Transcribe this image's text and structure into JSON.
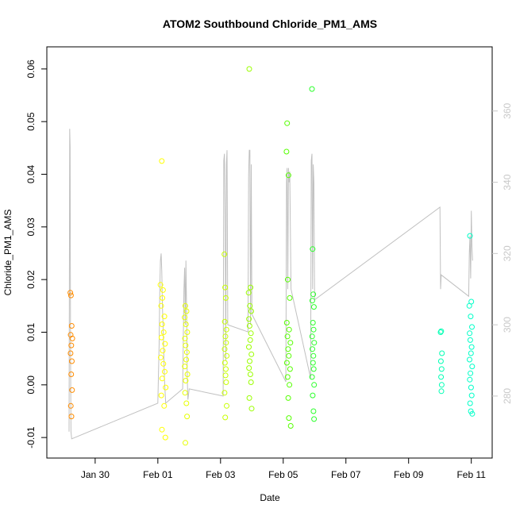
{
  "chart_data": {
    "type": "scatter",
    "title": "ATOM2 Southbound Chloride_PM1_AMS",
    "xlabel": "Date",
    "ylabel": "Chloride_PM1_AMS",
    "xlim": [
      "2017-01-28T11:00",
      "2017-02-11T16:00"
    ],
    "ylim": [
      -0.0139,
      0.0642
    ],
    "x_ticks": [
      "Jan 30",
      "Feb 01",
      "Feb 03",
      "Feb 05",
      "Feb 07",
      "Feb 09",
      "Feb 11"
    ],
    "y_ticks": [
      -0.01,
      0.0,
      0.01,
      0.02,
      0.03,
      0.04,
      0.05,
      0.06
    ],
    "y_tick_labels": [
      "-0.01",
      "0.00",
      "0.01",
      "0.02",
      "0.03",
      "0.04",
      "0.05",
      "0.06"
    ],
    "right_axis": {
      "label": "",
      "ylim": [
        262.6,
        378
      ],
      "ticks": [
        280,
        300,
        320,
        340,
        360
      ],
      "tick_labels": [
        "280",
        "300",
        "320",
        "340",
        "360"
      ],
      "color": "#c8c8c8"
    },
    "grid": false,
    "legend": "none",
    "marker": "open-circle",
    "series": [
      {
        "color": "#ff8c00",
        "x": [
          "2017-01-29T05:00",
          "2017-01-29T05:30",
          "2017-01-29T06:00",
          "2017-01-29T05:15",
          "2017-01-29T06:30",
          "2017-01-29T05:45",
          "2017-01-29T05:10",
          "2017-01-29T06:10",
          "2017-01-29T05:40",
          "2017-01-29T06:20",
          "2017-01-29T05:20",
          "2017-01-29T05:50"
        ],
        "y": [
          0.0175,
          0.017,
          0.0112,
          0.0095,
          0.0088,
          0.0075,
          0.006,
          0.0045,
          0.002,
          -0.001,
          -0.004,
          -0.006
        ]
      },
      {
        "color": "#ffff00",
        "x": [
          "2017-02-01T03:00",
          "2017-02-01T02:00",
          "2017-02-01T04:00",
          "2017-02-01T03:30",
          "2017-02-01T02:30",
          "2017-02-01T05:00",
          "2017-02-01T03:15",
          "2017-02-01T04:30",
          "2017-02-01T02:45",
          "2017-02-01T05:30",
          "2017-02-01T03:45",
          "2017-02-01T02:15",
          "2017-02-01T04:15",
          "2017-02-01T05:15",
          "2017-02-01T03:20",
          "2017-02-01T06:00",
          "2017-02-01T02:40",
          "2017-02-01T04:50",
          "2017-02-01T03:10",
          "2017-02-01T05:45"
        ],
        "y": [
          0.0425,
          0.019,
          0.018,
          0.0165,
          0.015,
          0.013,
          0.0115,
          0.01,
          0.009,
          0.0078,
          0.0065,
          0.0052,
          0.004,
          0.0025,
          0.0012,
          -0.0005,
          -0.002,
          -0.004,
          -0.0085,
          -0.01
        ]
      },
      {
        "color": "#e6ff00",
        "x": [
          "2017-02-01T21:00",
          "2017-02-01T22:00",
          "2017-02-01T20:30",
          "2017-02-01T21:30",
          "2017-02-01T22:30",
          "2017-02-01T20:45",
          "2017-02-01T21:15",
          "2017-02-01T22:15",
          "2017-02-01T21:45",
          "2017-02-01T20:40",
          "2017-02-01T22:40",
          "2017-02-01T21:20",
          "2017-02-01T20:50",
          "2017-02-01T21:50",
          "2017-02-01T22:20",
          "2017-02-01T21:05"
        ],
        "y": [
          0.015,
          0.014,
          0.0128,
          0.0115,
          0.01,
          0.0088,
          0.0075,
          0.0062,
          0.0048,
          0.0035,
          0.002,
          0.0008,
          -0.0015,
          -0.0035,
          -0.006,
          -0.011
        ]
      },
      {
        "color": "#c8ff00",
        "x": [
          "2017-02-03T03:00",
          "2017-02-03T03:30",
          "2017-02-03T04:00",
          "2017-02-03T03:15",
          "2017-02-03T04:30",
          "2017-02-03T03:45",
          "2017-02-03T04:15",
          "2017-02-03T03:10",
          "2017-02-03T04:45",
          "2017-02-03T03:20",
          "2017-02-03T04:05",
          "2017-02-03T03:50",
          "2017-02-03T04:20",
          "2017-02-03T03:05",
          "2017-02-03T04:40",
          "2017-02-03T03:35"
        ],
        "y": [
          0.0248,
          0.0185,
          0.0165,
          0.012,
          0.0105,
          0.0092,
          0.008,
          0.0068,
          0.0055,
          0.0042,
          0.003,
          0.0018,
          0.0005,
          -0.0015,
          -0.004,
          -0.0062
        ]
      },
      {
        "color": "#9bff00",
        "x": [
          "2017-02-03T22:00",
          "2017-02-03T23:00",
          "2017-02-03T21:30",
          "2017-02-03T22:30",
          "2017-02-03T23:30",
          "2017-02-03T21:45",
          "2017-02-03T22:15",
          "2017-02-03T23:15",
          "2017-02-03T22:45",
          "2017-02-03T21:40",
          "2017-02-03T23:40",
          "2017-02-03T22:20",
          "2017-02-03T21:50",
          "2017-02-03T22:50",
          "2017-02-03T23:20",
          "2017-02-03T22:05",
          "2017-02-03T23:50"
        ],
        "y": [
          0.06,
          0.0185,
          0.0175,
          0.015,
          0.014,
          0.0125,
          0.0112,
          0.0098,
          0.0085,
          0.0072,
          0.0058,
          0.0045,
          0.0032,
          0.002,
          0.0005,
          -0.0025,
          -0.0045
        ]
      },
      {
        "color": "#55ff00",
        "x": [
          "2017-02-05T03:00",
          "2017-02-05T02:30",
          "2017-02-05T04:00",
          "2017-02-05T03:30",
          "2017-02-05T05:00",
          "2017-02-05T02:45",
          "2017-02-05T04:30",
          "2017-02-05T03:15",
          "2017-02-05T05:30",
          "2017-02-05T03:45",
          "2017-02-05T04:15",
          "2017-02-05T02:50",
          "2017-02-05T05:15",
          "2017-02-05T03:20",
          "2017-02-05T04:45",
          "2017-02-05T03:50",
          "2017-02-05T04:20",
          "2017-02-05T05:45"
        ],
        "y": [
          0.0497,
          0.0443,
          0.0398,
          0.02,
          0.0165,
          0.0118,
          0.0105,
          0.0092,
          0.008,
          0.0068,
          0.0055,
          0.0042,
          0.003,
          0.0015,
          0.0,
          -0.0025,
          -0.0063,
          -0.0078
        ]
      },
      {
        "color": "#2bff2b",
        "x": [
          "2017-02-05T22:00",
          "2017-02-05T22:30",
          "2017-02-05T23:00",
          "2017-02-05T22:15",
          "2017-02-05T23:30",
          "2017-02-05T22:45",
          "2017-02-05T23:15",
          "2017-02-05T22:10",
          "2017-02-05T23:45",
          "2017-02-05T22:20",
          "2017-02-05T23:05",
          "2017-02-05T22:50",
          "2017-02-05T23:20",
          "2017-02-05T22:05",
          "2017-02-05T23:40",
          "2017-02-05T22:35",
          "2017-02-05T23:10",
          "2017-02-05T23:35"
        ],
        "y": [
          0.0562,
          0.0258,
          0.0172,
          0.016,
          0.0148,
          0.0118,
          0.0105,
          0.0092,
          0.008,
          0.0068,
          0.0055,
          0.0042,
          0.003,
          0.0015,
          0.0,
          -0.002,
          -0.005,
          -0.0065
        ]
      },
      {
        "color": "#00ffb4",
        "x": [
          "2017-02-10T01:00",
          "2017-02-10T00:30",
          "2017-02-10T01:30",
          "2017-02-10T00:45",
          "2017-02-10T01:15",
          "2017-02-10T00:50",
          "2017-02-10T01:20",
          "2017-02-10T01:05"
        ],
        "y": [
          0.0102,
          0.01,
          0.006,
          0.0045,
          0.003,
          0.0015,
          0.0,
          -0.0012
        ]
      },
      {
        "color": "#00ffc8",
        "x": [
          "2017-02-10T23:00",
          "2017-02-11T00:00",
          "2017-02-10T22:30",
          "2017-02-10T23:30",
          "2017-02-11T00:30",
          "2017-02-10T22:45",
          "2017-02-10T23:15",
          "2017-02-11T00:15",
          "2017-02-10T23:45",
          "2017-02-10T22:40",
          "2017-02-11T00:40",
          "2017-02-10T23:20",
          "2017-02-10T22:50",
          "2017-02-10T23:50",
          "2017-02-11T00:20",
          "2017-02-10T23:05",
          "2017-02-10T23:40",
          "2017-02-11T00:45"
        ],
        "y": [
          0.0283,
          0.0158,
          0.015,
          0.013,
          0.011,
          0.0098,
          0.0085,
          0.0072,
          0.006,
          0.0048,
          0.0035,
          0.0022,
          0.001,
          -0.0005,
          -0.002,
          -0.0035,
          -0.005,
          -0.0055
        ]
      }
    ],
    "altitude_line": {
      "color": "#c0c0c0",
      "x": [
        "2017-01-29T04:00",
        "2017-01-29T04:30",
        "2017-01-29T04:50",
        "2017-01-29T05:10",
        "2017-01-29T05:30",
        "2017-01-29T06:00",
        "2017-02-01T00:00",
        "2017-02-01T01:00",
        "2017-02-01T01:30",
        "2017-02-01T02:00",
        "2017-02-01T02:30",
        "2017-02-01T03:00",
        "2017-02-01T03:30",
        "2017-02-01T04:00",
        "2017-02-01T05:00",
        "2017-02-01T06:00",
        "2017-02-01T19:00",
        "2017-02-01T20:00",
        "2017-02-01T20:30",
        "2017-02-01T21:00",
        "2017-02-01T21:30",
        "2017-02-01T22:00",
        "2017-02-01T22:30",
        "2017-02-01T23:00",
        "2017-02-02T00:00",
        "2017-02-03T02:00",
        "2017-02-03T02:30",
        "2017-02-03T03:00",
        "2017-02-03T03:30",
        "2017-02-03T04:00",
        "2017-02-03T04:30",
        "2017-02-03T05:00",
        "2017-02-03T05:30",
        "2017-02-03T21:00",
        "2017-02-03T21:30",
        "2017-02-03T22:00",
        "2017-02-03T22:30",
        "2017-02-03T23:00",
        "2017-02-03T23:30",
        "2017-02-04T00:00",
        "2017-02-05T02:00",
        "2017-02-05T02:30",
        "2017-02-05T03:00",
        "2017-02-05T03:30",
        "2017-02-05T04:00",
        "2017-02-05T04:30",
        "2017-02-05T05:00",
        "2017-02-05T06:00",
        "2017-02-05T21:00",
        "2017-02-05T21:30",
        "2017-02-05T22:00",
        "2017-02-05T22:30",
        "2017-02-05T23:00",
        "2017-02-05T23:30",
        "2017-02-06T00:00",
        "2017-02-10T00:00",
        "2017-02-10T00:30",
        "2017-02-10T01:00",
        "2017-02-10T22:00",
        "2017-02-10T22:30",
        "2017-02-10T23:00",
        "2017-02-10T23:30",
        "2017-02-11T00:00",
        "2017-02-11T00:30",
        "2017-02-11T01:00"
      ],
      "y": [
        270,
        355,
        350,
        290,
        270,
        268,
        278,
        295,
        310,
        318,
        320,
        315,
        305,
        300,
        285,
        278,
        282,
        310,
        316,
        300,
        318,
        305,
        285,
        279,
        282,
        280,
        346,
        348,
        330,
        290,
        345,
        349,
        300,
        298,
        342,
        349,
        349,
        300,
        345,
        303,
        284,
        340,
        344,
        310,
        344,
        340,
        343,
        310,
        285,
        346,
        348,
        310,
        345,
        340,
        307,
        333,
        310,
        314,
        308,
        320,
        325,
        313,
        332,
        322,
        318
      ]
    }
  }
}
